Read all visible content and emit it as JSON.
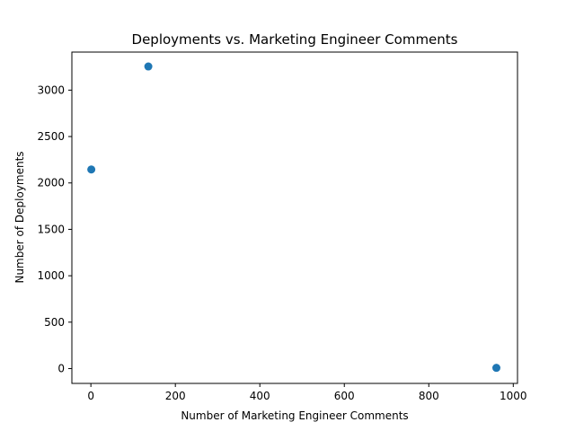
{
  "chart_data": {
    "type": "scatter",
    "title": "Deployments vs. Marketing Engineer Comments",
    "xlabel": "Number of Marketing Engineer Comments",
    "ylabel": "Number of Deployments",
    "xlim": [
      -45,
      1010
    ],
    "ylim": [
      -160,
      3410
    ],
    "x_ticks": [
      0,
      200,
      400,
      600,
      800,
      1000
    ],
    "y_ticks": [
      0,
      500,
      1000,
      1500,
      2000,
      2500,
      3000
    ],
    "grid": false,
    "legend": "none",
    "marker_color": "#1f77b4",
    "points": [
      {
        "x": 1,
        "y": 2145
      },
      {
        "x": 136,
        "y": 3255
      },
      {
        "x": 960,
        "y": 8
      }
    ]
  }
}
